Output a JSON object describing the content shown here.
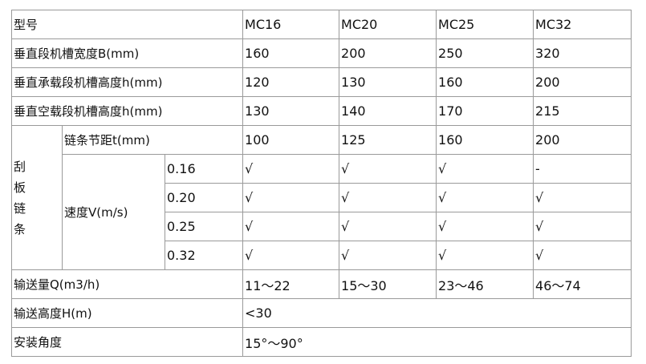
{
  "header": {
    "label": "型号",
    "models": [
      "MC16",
      "MC20",
      "MC25",
      "MC32"
    ]
  },
  "rows": [
    {
      "label": "垂直段机槽宽度B(mm)",
      "values": [
        "160",
        "200",
        "250",
        "320"
      ]
    },
    {
      "label": "垂直承载段机槽高度h(mm)",
      "values": [
        "120",
        "130",
        "160",
        "200"
      ]
    },
    {
      "label": "垂直空载段机槽高度h(mm)",
      "values": [
        "130",
        "140",
        "170",
        "215"
      ]
    }
  ],
  "scraper_chain": {
    "label": "刮板链条",
    "pitch": {
      "label": "链条节距t(mm)",
      "values": [
        "100",
        "125",
        "160",
        "200"
      ]
    },
    "speed": {
      "label": "速度V(m/s)",
      "options": [
        {
          "value": "0.16",
          "marks": [
            "√",
            "√",
            "√",
            "-"
          ]
        },
        {
          "value": "0.20",
          "marks": [
            "√",
            "√",
            "√",
            "√"
          ]
        },
        {
          "value": "0.25",
          "marks": [
            "√",
            "√",
            "√",
            "√"
          ]
        },
        {
          "value": "0.32",
          "marks": [
            "√",
            "√",
            "√",
            "√"
          ]
        }
      ]
    }
  },
  "capacity": {
    "label": "输送量Q(m3/h)",
    "values": [
      "11～22",
      "15～30",
      "23～46",
      "46～74"
    ]
  },
  "height": {
    "label": "输送高度H(m)",
    "value": "<30"
  },
  "angle": {
    "label": "安装角度",
    "value": "15°～90°"
  }
}
